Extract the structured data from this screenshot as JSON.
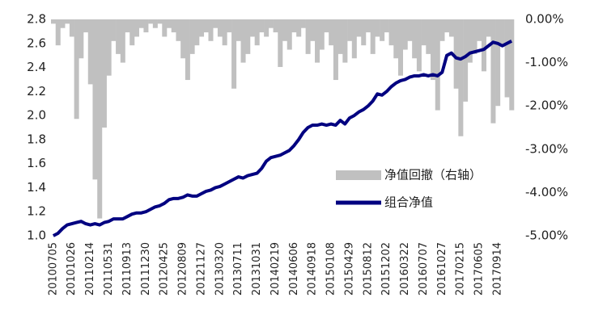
{
  "chart_data": {
    "type": "combo",
    "categories": [
      "20100705",
      null,
      null,
      null,
      "20101026",
      null,
      null,
      null,
      "20110214",
      null,
      null,
      null,
      "20110531",
      null,
      null,
      null,
      "20110913",
      null,
      null,
      null,
      "20111230",
      null,
      null,
      null,
      "20120425",
      null,
      null,
      null,
      "20120809",
      null,
      null,
      null,
      "20121127",
      null,
      null,
      null,
      "20130320",
      null,
      null,
      null,
      "20130711",
      null,
      null,
      null,
      "20131031",
      null,
      null,
      null,
      "20140219",
      null,
      null,
      null,
      "20140606",
      null,
      null,
      null,
      "20140918",
      null,
      null,
      null,
      "20150108",
      null,
      null,
      null,
      "20150429",
      null,
      null,
      null,
      "20150812",
      null,
      null,
      null,
      "20151202",
      null,
      null,
      null,
      "20160322",
      null,
      null,
      null,
      "20160707",
      null,
      null,
      null,
      "20161027",
      null,
      null,
      null,
      "20170215",
      null,
      null,
      null,
      "20170605",
      null,
      null,
      null,
      "20170914",
      null,
      null,
      null
    ],
    "series": [
      {
        "name": "净值回撤（右轴）",
        "color": "#c0c0c0",
        "type": "bar",
        "axis": "y2",
        "values": [
          -0.1,
          -0.6,
          -0.2,
          -0.1,
          -0.4,
          -2.3,
          -0.9,
          -0.3,
          -1.5,
          -3.7,
          -4.6,
          -2.5,
          -1.3,
          -0.5,
          -0.8,
          -1.0,
          -0.3,
          -0.6,
          -0.4,
          -0.2,
          -0.3,
          -0.1,
          -0.2,
          -0.1,
          -0.4,
          -0.2,
          -0.3,
          -0.5,
          -0.9,
          -1.4,
          -0.8,
          -0.6,
          -0.4,
          -0.3,
          -0.5,
          -0.2,
          -0.4,
          -0.6,
          -0.3,
          -1.6,
          -0.5,
          -1.0,
          -0.8,
          -0.4,
          -0.6,
          -0.3,
          -0.4,
          -0.2,
          -0.3,
          -1.1,
          -0.5,
          -0.7,
          -0.3,
          -0.4,
          -0.2,
          -0.8,
          -0.5,
          -1.0,
          -0.7,
          -0.3,
          -0.6,
          -1.4,
          -0.8,
          -1.0,
          -0.5,
          -0.9,
          -0.4,
          -0.6,
          -0.3,
          -0.8,
          -0.4,
          -0.5,
          -0.3,
          -0.6,
          -0.9,
          -1.3,
          -0.7,
          -0.5,
          -0.9,
          -1.2,
          -0.6,
          -0.8,
          -1.4,
          -2.1,
          -0.5,
          -0.3,
          -0.4,
          -1.6,
          -2.7,
          -1.9,
          -1.0,
          -0.8,
          -0.5,
          -1.2,
          -0.4,
          -2.4,
          -2.0,
          -0.6,
          -1.8,
          -2.1
        ]
      },
      {
        "name": "组合净值",
        "color": "#000080",
        "type": "line",
        "values": [
          1.0,
          1.02,
          1.06,
          1.09,
          1.1,
          1.11,
          1.12,
          1.1,
          1.09,
          1.1,
          1.09,
          1.11,
          1.12,
          1.14,
          1.14,
          1.14,
          1.16,
          1.18,
          1.19,
          1.19,
          1.2,
          1.22,
          1.24,
          1.25,
          1.27,
          1.3,
          1.31,
          1.31,
          1.32,
          1.34,
          1.33,
          1.33,
          1.35,
          1.37,
          1.38,
          1.4,
          1.41,
          1.43,
          1.45,
          1.47,
          1.49,
          1.48,
          1.5,
          1.51,
          1.52,
          1.56,
          1.62,
          1.65,
          1.66,
          1.67,
          1.69,
          1.71,
          1.75,
          1.8,
          1.86,
          1.9,
          1.92,
          1.92,
          1.93,
          1.92,
          1.93,
          1.92,
          1.96,
          1.93,
          1.98,
          2.0,
          2.03,
          2.05,
          2.08,
          2.12,
          2.18,
          2.17,
          2.2,
          2.24,
          2.27,
          2.29,
          2.3,
          2.32,
          2.33,
          2.33,
          2.34,
          2.33,
          2.34,
          2.33,
          2.36,
          2.5,
          2.52,
          2.48,
          2.47,
          2.49,
          2.52,
          2.53,
          2.54,
          2.55,
          2.58,
          2.61,
          2.6,
          2.58,
          2.6,
          2.62
        ]
      }
    ],
    "ylim": [
      1.0,
      2.8
    ],
    "yticks": [
      {
        "value": 1.0,
        "label": "1.0"
      },
      1.2,
      1.4,
      1.6,
      1.8,
      {
        "value": 2.0,
        "label": "2.0"
      },
      2.2,
      2.4,
      2.6,
      2.8
    ],
    "y2lim": [
      -5,
      0
    ],
    "y2ticks": [
      {
        "value": 0,
        "label": "0.00%"
      },
      {
        "value": -1,
        "label": "-1.00%"
      },
      {
        "value": -2,
        "label": "-2.00%"
      },
      {
        "value": -3,
        "label": "-3.00%"
      },
      {
        "value": -4,
        "label": "-4.00%"
      },
      {
        "value": -5,
        "label": "-5.00%"
      }
    ],
    "legend": "lower-right"
  }
}
